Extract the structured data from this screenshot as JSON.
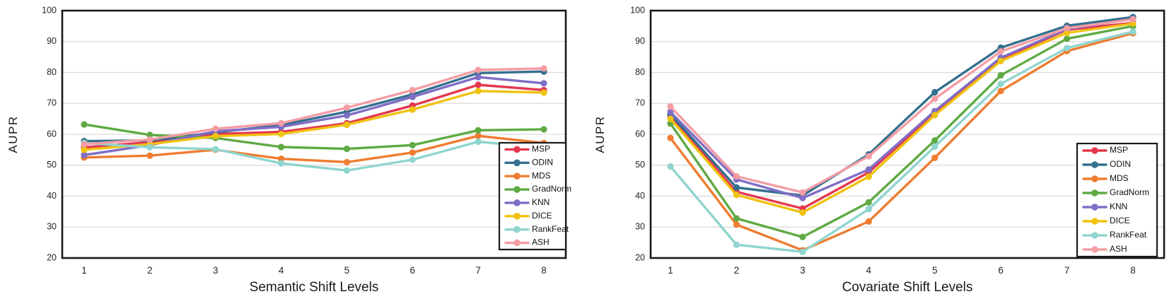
{
  "figure": {
    "background": "#ffffff",
    "axis_color": "#1a1a1a",
    "grid_color": "#d9d9d9",
    "tick_label_color": "#262626",
    "title_color": "#1a1a1a"
  },
  "chart_data": [
    {
      "type": "line",
      "title": "",
      "xlabel": "Semantic Shift Levels",
      "ylabel": "AUPR",
      "x": [
        1,
        2,
        3,
        4,
        5,
        6,
        7,
        8
      ],
      "ylim": [
        20,
        100
      ],
      "ytick_step": 10,
      "grid": true,
      "legend_position": "inside-right",
      "series": [
        {
          "name": "MSP",
          "color": "#e5384e",
          "values": [
            55.8,
            57.4,
            60.1,
            60.8,
            63.6,
            69.3,
            76.0,
            74.3
          ]
        },
        {
          "name": "ODIN",
          "color": "#35708e",
          "values": [
            57.8,
            58.0,
            60.6,
            63.0,
            67.3,
            72.9,
            79.8,
            80.3
          ]
        },
        {
          "name": "MDS",
          "color": "#ef7d32",
          "values": [
            52.5,
            53.1,
            55.0,
            52.1,
            51.0,
            54.1,
            59.5,
            57.2
          ]
        },
        {
          "name": "GradNorm",
          "color": "#5faa44",
          "values": [
            63.2,
            59.8,
            58.8,
            55.9,
            55.3,
            56.5,
            61.3,
            61.6
          ]
        },
        {
          "name": "KNN",
          "color": "#7f6ec6",
          "values": [
            53.3,
            56.5,
            61.0,
            62.4,
            66.1,
            72.1,
            78.5,
            76.5
          ]
        },
        {
          "name": "DICE",
          "color": "#f0c211",
          "values": [
            55.0,
            56.8,
            59.4,
            60.1,
            63.1,
            68.0,
            74.0,
            73.5
          ]
        },
        {
          "name": "RankFeat",
          "color": "#90d5cf",
          "values": [
            57.2,
            55.8,
            55.2,
            50.6,
            48.3,
            51.8,
            57.6,
            55.6
          ]
        },
        {
          "name": "ASH",
          "color": "#f49da5",
          "values": [
            56.8,
            58.3,
            61.8,
            63.6,
            68.6,
            74.3,
            80.8,
            81.3
          ]
        }
      ]
    },
    {
      "type": "line",
      "title": "",
      "xlabel": "Covariate Shift Levels",
      "ylabel": "AUPR",
      "x": [
        1,
        2,
        3,
        4,
        5,
        6,
        7,
        8
      ],
      "ylim": [
        20,
        100
      ],
      "ytick_step": 10,
      "grid": true,
      "legend_position": "inside-right",
      "series": [
        {
          "name": "MSP",
          "color": "#e5384e",
          "values": [
            66.0,
            41.4,
            36.0,
            47.7,
            66.9,
            84.3,
            93.8,
            96.0
          ]
        },
        {
          "name": "ODIN",
          "color": "#35708e",
          "values": [
            66.5,
            42.8,
            40.2,
            53.5,
            73.6,
            88.0,
            95.1,
            97.9
          ]
        },
        {
          "name": "MDS",
          "color": "#ef7d32",
          "values": [
            58.8,
            30.8,
            22.5,
            31.8,
            52.4,
            74.0,
            86.9,
            92.7
          ]
        },
        {
          "name": "GradNorm",
          "color": "#5faa44",
          "values": [
            63.5,
            32.8,
            26.8,
            38.0,
            58.0,
            79.1,
            90.9,
            95.0
          ]
        },
        {
          "name": "KNN",
          "color": "#7f6ec6",
          "values": [
            67.2,
            45.4,
            39.4,
            48.6,
            67.5,
            84.8,
            94.0,
            97.3
          ]
        },
        {
          "name": "DICE",
          "color": "#f0c211",
          "values": [
            65.0,
            40.4,
            34.7,
            46.3,
            66.2,
            83.7,
            92.8,
            95.8
          ]
        },
        {
          "name": "RankFeat",
          "color": "#90d5cf",
          "values": [
            49.6,
            24.3,
            22.0,
            35.8,
            56.0,
            76.3,
            87.9,
            93.2
          ]
        },
        {
          "name": "ASH",
          "color": "#f49da5",
          "values": [
            69.0,
            46.4,
            41.2,
            52.9,
            71.5,
            86.8,
            94.3,
            97.2
          ]
        }
      ]
    }
  ]
}
